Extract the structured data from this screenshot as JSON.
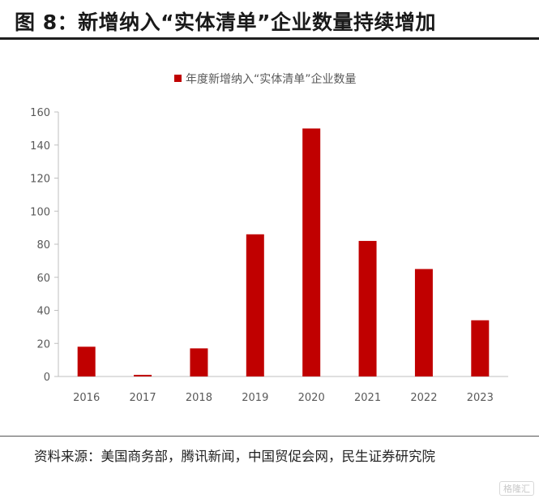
{
  "header": {
    "title": "图 8：新增纳入“实体清单”企业数量持续增加"
  },
  "footer": {
    "source": "资料来源：美国商务部，腾讯新闻，中国贸促会网，民生证券研究院"
  },
  "watermark": {
    "text": "格隆汇"
  },
  "chart_data": {
    "type": "bar",
    "categories": [
      "2016",
      "2017",
      "2018",
      "2019",
      "2020",
      "2021",
      "2022",
      "2023"
    ],
    "series": [
      {
        "name": "年度新增纳入“实体清单”企业数量",
        "values": [
          18,
          1,
          17,
          86,
          150,
          82,
          65,
          34
        ]
      }
    ],
    "ylim": [
      0,
      160
    ],
    "yticks": [
      0,
      20,
      40,
      60,
      80,
      100,
      120,
      140,
      160
    ],
    "grid": false,
    "legend": "top-center",
    "colors": {
      "bar": "#C00000",
      "axis": "#bfbfbf",
      "tick_text": "#595959"
    }
  }
}
